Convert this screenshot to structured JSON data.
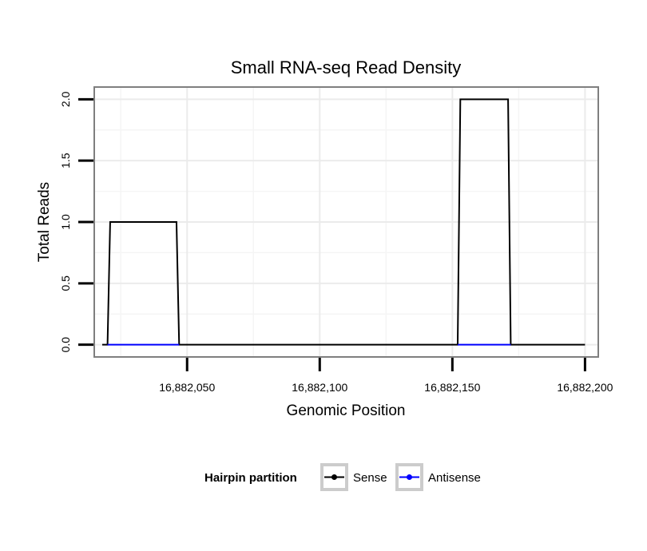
{
  "chart_data": {
    "type": "line",
    "title": "Small RNA-seq Read Density",
    "xlabel": "Genomic Position",
    "ylabel": "Total Reads",
    "xlim": [
      16882015,
      16882205
    ],
    "ylim": [
      -0.1,
      2.1
    ],
    "x_ticks": [
      16882050,
      16882100,
      16882150,
      16882200
    ],
    "x_tick_labels": [
      "16,882,050",
      "16,882,100",
      "16,882,150",
      "16,882,200"
    ],
    "y_ticks": [
      0,
      0.5,
      1,
      1.5,
      2
    ],
    "y_tick_labels": [
      "0.0",
      "0.5",
      "1.0",
      "1.5",
      "2.0"
    ],
    "grid": true,
    "legend": {
      "title": "Hairpin partition",
      "position": "bottom"
    },
    "series": [
      {
        "name": "Sense",
        "color": "#000000",
        "x": [
          16882018,
          16882020,
          16882021,
          16882046,
          16882047,
          16882152,
          16882153,
          16882171,
          16882172,
          16882200
        ],
        "y": [
          0,
          0,
          1,
          1,
          0,
          0,
          2,
          2,
          0,
          0
        ]
      },
      {
        "name": "Antisense",
        "color": "#0000ff",
        "x": [
          16882020,
          16882047,
          16882152,
          16882172
        ],
        "y": [
          0,
          0,
          0,
          0
        ]
      }
    ]
  }
}
